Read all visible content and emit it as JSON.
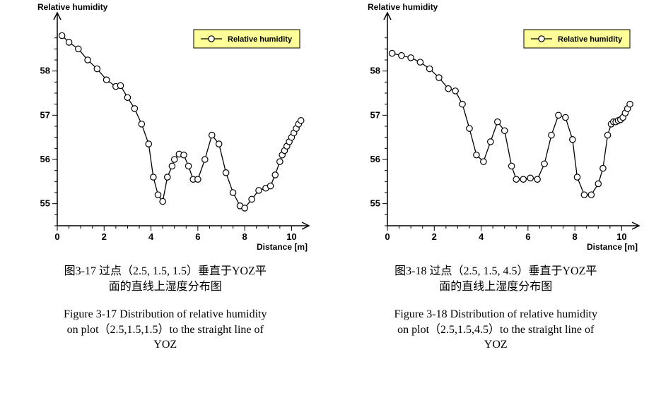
{
  "panels": [
    {
      "caption_zh_line1": "图3-17  过点（2.5, 1.5, 1.5）垂直于YOZ平",
      "caption_zh_line2": "面的直线上湿度分布图",
      "caption_en_line1": "Figure 3-17 Distribution of relative humidity",
      "caption_en_line2": "on plot（2.5,1.5,1.5）to the straight line of",
      "caption_en_line3": "YOZ",
      "chart": {
        "type": "line",
        "ylabel": "Relative humidity",
        "xlabel": "Distance [m]",
        "xlim": [
          0,
          10.5
        ],
        "ylim": [
          54.5,
          59.0
        ],
        "xtick_major": [
          0,
          2,
          4,
          6,
          8,
          10
        ],
        "xtick_minor_step": 0.5,
        "ytick_major": [
          55,
          56,
          57,
          58
        ],
        "ytick_minor_step": 0.25,
        "legend_label": "Relative humidity",
        "legend_bg": "#ffff99",
        "background_color": "#ffffff",
        "line_color": "#000000",
        "marker_fill": "#ffffff",
        "marker_stroke": "#000000",
        "marker_radius": 4.2,
        "line_width": 1.3,
        "axis_label_fontsize": 12,
        "tick_label_fontsize": 13,
        "legend_fontsize": 11,
        "series": {
          "x": [
            0.2,
            0.5,
            0.9,
            1.3,
            1.7,
            2.1,
            2.5,
            2.7,
            3.0,
            3.3,
            3.6,
            3.9,
            4.1,
            4.3,
            4.5,
            4.7,
            4.9,
            5.0,
            5.2,
            5.4,
            5.6,
            5.8,
            6.0,
            6.3,
            6.6,
            6.9,
            7.2,
            7.5,
            7.8,
            8.0,
            8.3,
            8.6,
            8.9,
            9.1,
            9.3,
            9.5,
            9.6,
            9.7,
            9.8,
            9.9,
            10.0,
            10.1,
            10.2,
            10.3,
            10.4
          ],
          "y": [
            58.8,
            58.65,
            58.5,
            58.25,
            58.05,
            57.8,
            57.65,
            57.67,
            57.4,
            57.15,
            56.8,
            56.35,
            55.6,
            55.2,
            55.05,
            55.6,
            55.85,
            56.0,
            56.12,
            56.1,
            55.85,
            55.55,
            55.55,
            56.0,
            56.55,
            56.35,
            55.7,
            55.25,
            54.95,
            54.9,
            55.1,
            55.3,
            55.35,
            55.4,
            55.65,
            55.95,
            56.1,
            56.2,
            56.3,
            56.4,
            56.5,
            56.6,
            56.7,
            56.8,
            56.88
          ]
        }
      }
    },
    {
      "caption_zh_line1": "图3-18  过点（2.5, 1.5, 4.5）垂直于YOZ平",
      "caption_zh_line2": "面的直线上湿度分布图",
      "caption_en_line1": "Figure 3-18 Distribution of relative humidity",
      "caption_en_line2": "on plot（2.5,1.5,4.5）to the straight line of",
      "caption_en_line3": "YOZ",
      "chart": {
        "type": "line",
        "ylabel": "Relative humidity",
        "xlabel": "Distance [m]",
        "xlim": [
          0,
          10.5
        ],
        "ylim": [
          54.5,
          59.0
        ],
        "xtick_major": [
          0,
          2,
          4,
          6,
          8,
          10
        ],
        "xtick_minor_step": 0.5,
        "ytick_major": [
          55,
          56,
          57,
          58
        ],
        "ytick_minor_step": 0.25,
        "legend_label": "Relative humidity",
        "legend_bg": "#ffff99",
        "background_color": "#ffffff",
        "line_color": "#000000",
        "marker_fill": "#ffffff",
        "marker_stroke": "#000000",
        "marker_radius": 4.2,
        "line_width": 1.3,
        "axis_label_fontsize": 12,
        "tick_label_fontsize": 13,
        "legend_fontsize": 11,
        "series": {
          "x": [
            0.2,
            0.6,
            1.0,
            1.4,
            1.8,
            2.2,
            2.6,
            2.9,
            3.2,
            3.5,
            3.8,
            4.1,
            4.4,
            4.7,
            5.0,
            5.3,
            5.5,
            5.8,
            6.1,
            6.4,
            6.7,
            7.0,
            7.3,
            7.6,
            7.9,
            8.1,
            8.4,
            8.7,
            9.0,
            9.2,
            9.4,
            9.55,
            9.65,
            9.75,
            9.85,
            9.95,
            10.05,
            10.15,
            10.25,
            10.35
          ],
          "y": [
            58.4,
            58.35,
            58.3,
            58.2,
            58.05,
            57.85,
            57.6,
            57.55,
            57.25,
            56.7,
            56.1,
            55.95,
            56.4,
            56.85,
            56.65,
            55.85,
            55.55,
            55.55,
            55.58,
            55.55,
            55.9,
            56.55,
            57.0,
            56.95,
            56.45,
            55.6,
            55.2,
            55.2,
            55.45,
            55.8,
            56.55,
            56.8,
            56.85,
            56.85,
            56.88,
            56.9,
            56.95,
            57.05,
            57.15,
            57.25
          ]
        }
      }
    }
  ]
}
